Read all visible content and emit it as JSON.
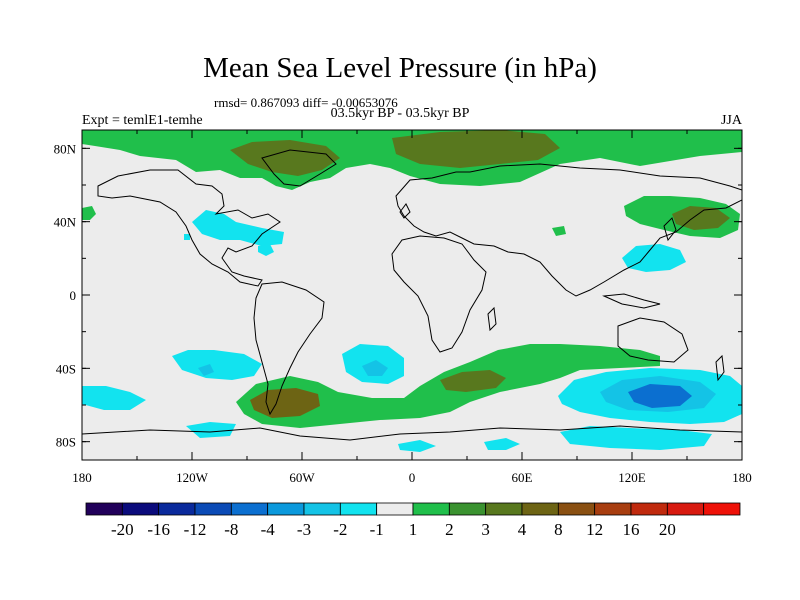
{
  "title": "Mean Sea Level Pressure (in hPa)",
  "stats": "rmsd= 0.867093 diff= -0.00653076",
  "subtitle": "03.5kyr BP - 03.5kyr BP",
  "left_label": "Expt = temlE1-temhe",
  "right_label": "JJA",
  "map": {
    "lat_ticks": [
      {
        "label": "80N",
        "lat": 80
      },
      {
        "label": "40N",
        "lat": 40
      },
      {
        "label": "0",
        "lat": 0
      },
      {
        "label": "40S",
        "lat": -40
      },
      {
        "label": "80S",
        "lat": -80
      }
    ],
    "lon_ticks": [
      {
        "label": "180",
        "lon": -180
      },
      {
        "label": "120W",
        "lon": -120
      },
      {
        "label": "60W",
        "lon": -60
      },
      {
        "label": "0",
        "lon": 0
      },
      {
        "label": "60E",
        "lon": 60
      },
      {
        "label": "120E",
        "lon": 120
      },
      {
        "label": "180",
        "lon": 180
      }
    ],
    "lat_range": [
      -90,
      90
    ],
    "lon_range": [
      -180,
      180
    ]
  },
  "colorbar": {
    "colors": [
      "#21005a",
      "#0b0b7c",
      "#0a2a9c",
      "#0b4bb6",
      "#0b6fd0",
      "#0b99dc",
      "#14c3e6",
      "#12e3ef",
      "#ececec",
      "#20bf4b",
      "#3a9230",
      "#58781e",
      "#6d6414",
      "#8a5012",
      "#a83e10",
      "#c02a0e",
      "#d81a10",
      "#ee1108"
    ],
    "labels": [
      "-20",
      "-16",
      "-12",
      "-8",
      "-4",
      "-3",
      "-2",
      "-1",
      "1",
      "2",
      "3",
      "4",
      "8",
      "12",
      "16",
      "20"
    ]
  },
  "fields": [
    {
      "name": "arctic-greenland-positive",
      "color": "#20bf4b",
      "level": "1-2"
    },
    {
      "name": "greenland-core",
      "color": "#58781e",
      "level": "3-4"
    },
    {
      "name": "north-america-negative",
      "color": "#12e3ef",
      "level": "-1"
    },
    {
      "name": "north-pacific-positive",
      "color": "#20bf4b",
      "level": "1-2"
    },
    {
      "name": "southern-ocean-positive",
      "color": "#20bf4b",
      "level": "1-2"
    },
    {
      "name": "south-america-core",
      "color": "#6d6414",
      "level": "4-8"
    },
    {
      "name": "south-indian-negative",
      "color": "#0b6fd0",
      "level": "-4"
    }
  ]
}
